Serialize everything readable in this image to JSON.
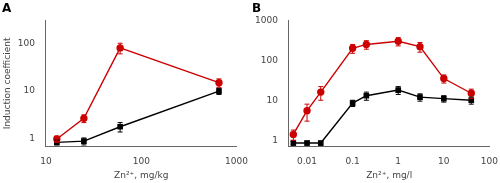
{
  "chart_data": [
    {
      "type": "line",
      "title": "A",
      "x_label": "Zn²⁺, mg/kg",
      "y_label": "Induction coefficient",
      "log": true,
      "grid": false,
      "xlim": [
        10,
        1000
      ],
      "ylim": [
        0.7,
        300
      ],
      "xticks": [
        10,
        100,
        1000
      ],
      "yticks": [
        1,
        10,
        100
      ],
      "x": [
        13,
        25,
        60,
        654
      ],
      "series": [
        {
          "color": "#000000",
          "marker": "square",
          "values": [
            0.85,
            0.9,
            1.8,
            10
          ],
          "errors": [
            0.1,
            0.15,
            0.4,
            1.5
          ]
        },
        {
          "color": "#cc0000",
          "marker": "circle",
          "values": [
            1.0,
            2.7,
            80,
            15
          ],
          "errors": [
            0.15,
            0.5,
            20,
            3
          ]
        }
      ]
    },
    {
      "type": "line",
      "title": "B",
      "x_label": "Zn²⁺, mg/l",
      "log": true,
      "grid": false,
      "xlim": [
        0.004,
        100
      ],
      "ylim": [
        0.7,
        1000
      ],
      "xticks": [
        0.01,
        0.1,
        1,
        10,
        100
      ],
      "yticks": [
        1,
        10,
        100,
        1000
      ],
      "x": [
        0.005,
        0.01,
        0.02,
        0.1,
        0.2,
        1.0,
        3.0,
        10,
        40
      ],
      "series": [
        {
          "color": "#000000",
          "marker": "square",
          "values": [
            0.85,
            0.85,
            0.85,
            8.5,
            13,
            18,
            12,
            11,
            10
          ],
          "errors": [
            0.1,
            0.1,
            0.1,
            1.5,
            3,
            4,
            2.5,
            2,
            2
          ]
        },
        {
          "color": "#cc0000",
          "marker": "circle",
          "values": [
            1.4,
            5.5,
            16,
            200,
            250,
            300,
            220,
            35,
            15
          ],
          "errors": [
            0.4,
            2.5,
            6,
            50,
            60,
            70,
            60,
            8,
            4
          ]
        }
      ]
    }
  ]
}
